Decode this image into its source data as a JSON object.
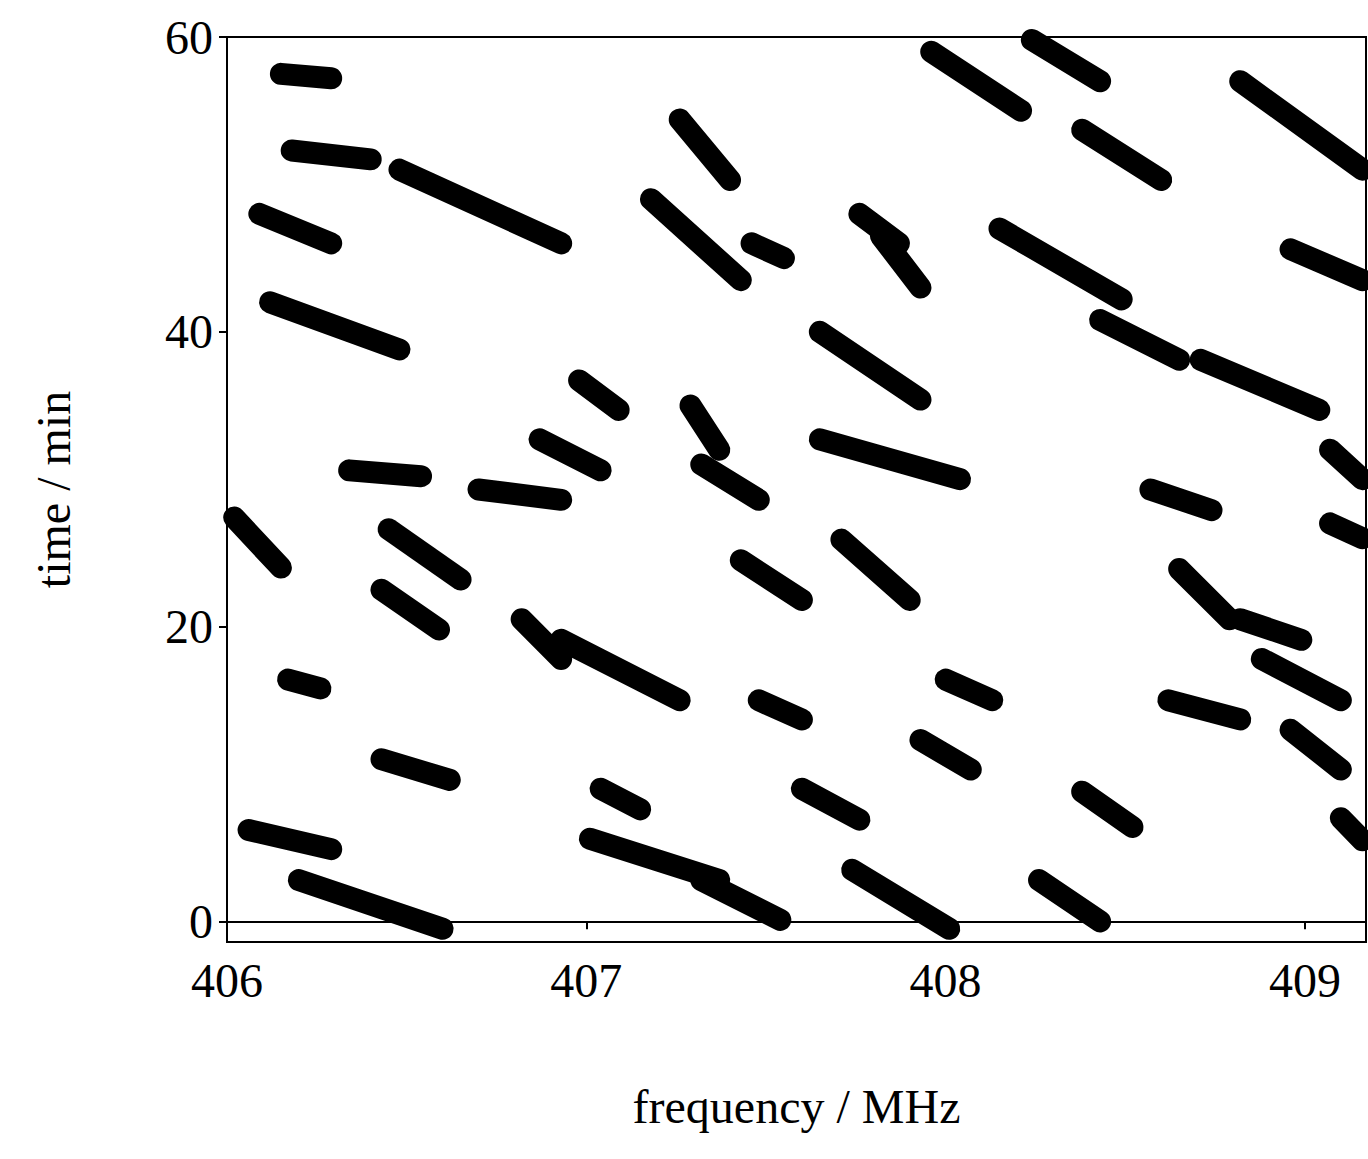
{
  "chart_data": {
    "type": "lines",
    "x_label": "frequency / MHz",
    "y_label": "time / min",
    "xlim": [
      406,
      409.17
    ],
    "ylim": [
      -1.4,
      60
    ],
    "xticks": [
      406,
      407,
      408,
      409
    ],
    "yticks": [
      0,
      20,
      40,
      60
    ],
    "color": "#000000",
    "streaks": [
      [
        406.06,
        6.2,
        406.29,
        4.9
      ],
      [
        406.2,
        2.8,
        406.6,
        -0.5
      ],
      [
        406.15,
        57.5,
        406.29,
        57.2
      ],
      [
        406.18,
        52.3,
        406.4,
        51.7
      ],
      [
        406.48,
        51.0,
        406.93,
        46.0
      ],
      [
        406.09,
        48.0,
        406.29,
        46.0
      ],
      [
        406.12,
        42.0,
        406.48,
        38.8
      ],
      [
        406.02,
        27.4,
        406.15,
        24.0
      ],
      [
        406.34,
        30.6,
        406.54,
        30.2
      ],
      [
        406.45,
        26.6,
        406.65,
        23.2
      ],
      [
        406.43,
        22.5,
        406.59,
        19.8
      ],
      [
        406.43,
        11.0,
        406.62,
        9.6
      ],
      [
        406.17,
        16.4,
        406.26,
        15.8
      ],
      [
        406.7,
        29.3,
        406.93,
        28.6
      ],
      [
        406.93,
        19.1,
        407.26,
        15.0
      ],
      [
        406.98,
        36.7,
        407.09,
        34.7
      ],
      [
        406.87,
        32.7,
        407.04,
        30.6
      ],
      [
        407.04,
        9.0,
        407.15,
        7.6
      ],
      [
        407.01,
        5.6,
        407.37,
        2.8
      ],
      [
        407.32,
        2.8,
        407.54,
        0.1
      ],
      [
        407.18,
        49.0,
        407.43,
        43.5
      ],
      [
        407.26,
        54.4,
        407.4,
        50.3
      ],
      [
        407.46,
        46.0,
        407.55,
        45.0
      ],
      [
        407.43,
        24.5,
        407.6,
        21.8
      ],
      [
        407.48,
        15.0,
        407.6,
        13.7
      ],
      [
        407.65,
        40.0,
        407.93,
        35.4
      ],
      [
        407.65,
        32.7,
        408.04,
        30.0
      ],
      [
        407.71,
        25.9,
        407.9,
        21.8
      ],
      [
        407.6,
        9.0,
        407.76,
        6.9
      ],
      [
        407.74,
        3.5,
        408.01,
        -0.5
      ],
      [
        407.76,
        48.0,
        407.87,
        46.0
      ],
      [
        407.82,
        46.5,
        407.93,
        43.0
      ],
      [
        408.0,
        16.4,
        408.13,
        15.0
      ],
      [
        407.93,
        12.3,
        408.07,
        10.3
      ],
      [
        407.96,
        59.0,
        408.21,
        55.0
      ],
      [
        408.24,
        59.8,
        408.43,
        57.0
      ],
      [
        408.15,
        47.0,
        408.49,
        42.2
      ],
      [
        408.38,
        53.7,
        408.6,
        50.3
      ],
      [
        408.43,
        40.8,
        408.65,
        38.1
      ],
      [
        408.71,
        38.1,
        409.04,
        34.7
      ],
      [
        408.82,
        57.0,
        409.16,
        51.0
      ],
      [
        408.96,
        45.6,
        409.16,
        43.5
      ],
      [
        408.57,
        29.3,
        408.74,
        27.9
      ],
      [
        408.65,
        23.9,
        408.79,
        20.5
      ],
      [
        408.82,
        20.5,
        408.99,
        19.1
      ],
      [
        408.88,
        17.8,
        409.1,
        15.0
      ],
      [
        408.62,
        15.0,
        408.82,
        13.7
      ],
      [
        408.96,
        13.0,
        409.1,
        10.3
      ],
      [
        408.26,
        2.8,
        408.43,
        0.0
      ],
      [
        408.38,
        8.8,
        408.52,
        6.4
      ],
      [
        409.07,
        32.0,
        409.16,
        30.0
      ],
      [
        409.07,
        27.0,
        409.16,
        26.0
      ],
      [
        409.1,
        7.0,
        409.16,
        5.5
      ],
      [
        406.82,
        20.5,
        406.93,
        17.8
      ],
      [
        407.29,
        35.0,
        407.37,
        32.0
      ],
      [
        407.32,
        31.0,
        407.48,
        28.6
      ]
    ]
  }
}
